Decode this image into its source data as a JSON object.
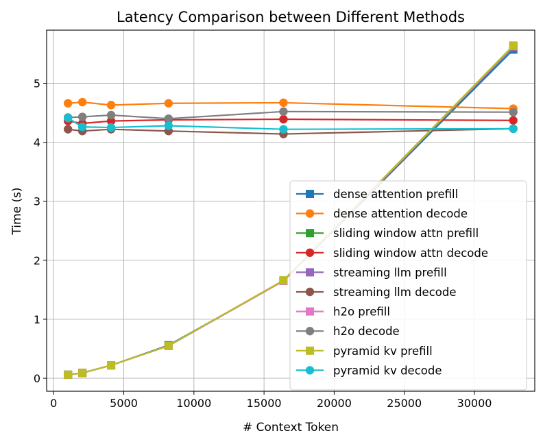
{
  "chart_data": {
    "type": "line",
    "title": "Latency Comparison between Different Methods",
    "xlabel": "# Context Token",
    "ylabel": "Time (s)",
    "xlim": [
      -500,
      34300
    ],
    "ylim": [
      -0.22,
      5.9
    ],
    "xticks": [
      0,
      5000,
      10000,
      15000,
      20000,
      25000,
      30000
    ],
    "yticks": [
      0,
      1,
      2,
      3,
      4,
      5
    ],
    "grid": true,
    "legend_position": "lower-right",
    "x": [
      1024,
      2048,
      4096,
      8192,
      16384,
      32768
    ],
    "series": [
      {
        "name": "dense attention prefill",
        "marker": "square",
        "color": "#1f77b4",
        "values": [
          0.06,
          0.09,
          0.22,
          0.56,
          1.65,
          5.57
        ]
      },
      {
        "name": "dense attention decode",
        "marker": "circle",
        "color": "#ff7f0e",
        "values": [
          4.66,
          4.68,
          4.63,
          4.66,
          4.67,
          4.57
        ]
      },
      {
        "name": "sliding window attn prefill",
        "marker": "square",
        "color": "#2ca02c",
        "values": [
          0.06,
          0.09,
          0.22,
          0.55,
          1.65,
          5.61
        ]
      },
      {
        "name": "sliding window attn decode",
        "marker": "circle",
        "color": "#d62728",
        "values": [
          4.36,
          4.32,
          4.36,
          4.38,
          4.39,
          4.37
        ]
      },
      {
        "name": "streaming llm prefill",
        "marker": "square",
        "color": "#9467bd",
        "values": [
          0.06,
          0.09,
          0.22,
          0.55,
          1.65,
          5.62
        ]
      },
      {
        "name": "streaming llm decode",
        "marker": "circle",
        "color": "#8c564b",
        "values": [
          4.22,
          4.19,
          4.22,
          4.19,
          4.14,
          4.23
        ]
      },
      {
        "name": "h2o prefill",
        "marker": "square",
        "color": "#e377c2",
        "values": [
          0.06,
          0.09,
          0.22,
          0.55,
          1.65,
          5.63
        ]
      },
      {
        "name": "h2o decode",
        "marker": "circle",
        "color": "#7f7f7f",
        "values": [
          4.42,
          4.43,
          4.46,
          4.4,
          4.52,
          4.51
        ]
      },
      {
        "name": "pyramid kv prefill",
        "marker": "square",
        "color": "#bcbd22",
        "values": [
          0.06,
          0.09,
          0.22,
          0.55,
          1.66,
          5.64
        ]
      },
      {
        "name": "pyramid kv decode",
        "marker": "circle",
        "color": "#17becf",
        "values": [
          4.41,
          4.26,
          4.25,
          4.28,
          4.22,
          4.23
        ]
      }
    ]
  }
}
